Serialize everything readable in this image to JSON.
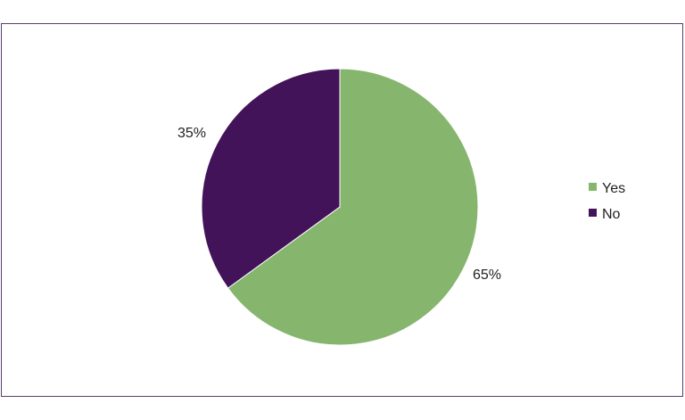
{
  "chart_data": {
    "type": "pie",
    "categories": [
      "Yes",
      "No"
    ],
    "values": [
      65,
      35
    ],
    "data_labels": [
      "65%",
      "35%"
    ],
    "colors": [
      "#86b56e",
      "#43135a"
    ],
    "legend_placement": "right"
  }
}
